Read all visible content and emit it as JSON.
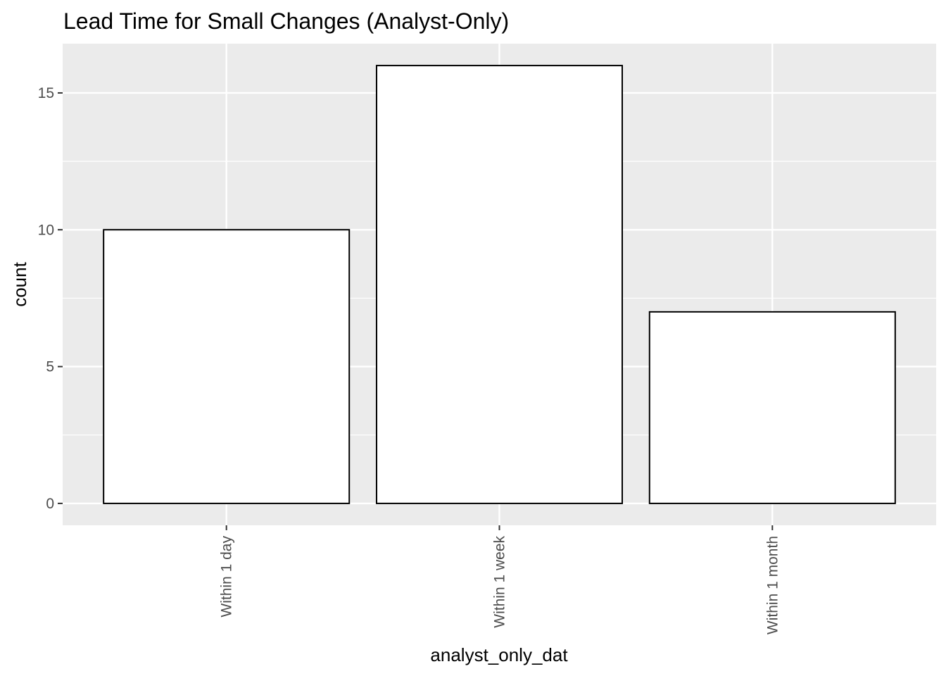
{
  "chart_data": {
    "type": "bar",
    "title": "Lead Time for Small Changes (Analyst-Only)",
    "xlabel": "analyst_only_dat",
    "ylabel": "count",
    "categories": [
      "Within 1 day",
      "Within 1 week",
      "Within 1 month"
    ],
    "values": [
      10,
      16,
      7
    ],
    "ylim": [
      -0.8,
      16.8
    ],
    "yticks": [
      0,
      5,
      10,
      15
    ],
    "grid": true,
    "legend": "none",
    "colors": {
      "panel_background": "#ebebeb",
      "grid": "#ffffff",
      "bar_fill": "#ffffff",
      "bar_outline": "#000000",
      "tick_text": "#4d4d4d",
      "tick_mark": "#333333"
    }
  }
}
